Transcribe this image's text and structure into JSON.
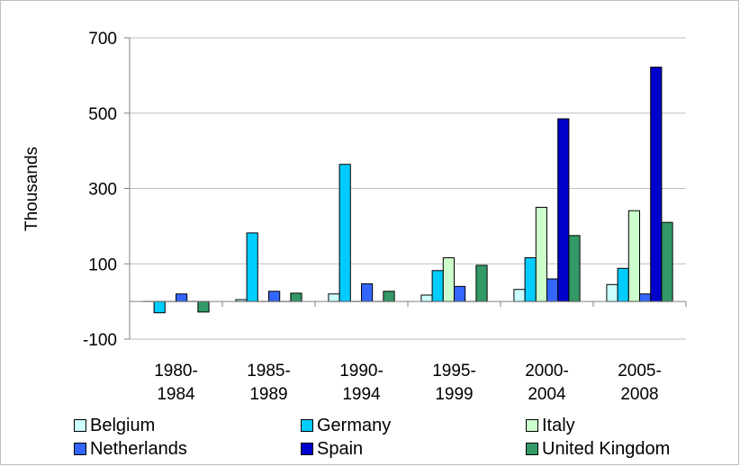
{
  "chart_data": {
    "type": "bar",
    "categories": [
      [
        "1980-",
        "1984"
      ],
      [
        "1985-",
        "1989"
      ],
      [
        "1990-",
        "1994"
      ],
      [
        "1995-",
        "1999"
      ],
      [
        "2000-",
        "2004"
      ],
      [
        "2005-",
        "2008"
      ]
    ],
    "ylabel": "Thousands",
    "ylim": [
      -100,
      700
    ],
    "yticks": [
      -100,
      100,
      300,
      500,
      700
    ],
    "grid": true,
    "legend_position": "bottom",
    "series": [
      {
        "name": "Belgium",
        "color": "#ccffff",
        "values": [
          0,
          5,
          20,
          17,
          32,
          45
        ]
      },
      {
        "name": "Germany",
        "color": "#00ccff",
        "values": [
          -30,
          182,
          364,
          82,
          116,
          88
        ]
      },
      {
        "name": "Italy",
        "color": "#ccffcc",
        "values": [
          0,
          0,
          0,
          116,
          250,
          241
        ]
      },
      {
        "name": "Netherlands",
        "color": "#3366ff",
        "values": [
          20,
          27,
          47,
          40,
          60,
          20
        ]
      },
      {
        "name": "Spain",
        "color": "#0000cc",
        "values": [
          0,
          0,
          0,
          0,
          485,
          622
        ]
      },
      {
        "name": "United Kingdom",
        "color": "#339966",
        "values": [
          -28,
          22,
          27,
          96,
          175,
          210
        ]
      }
    ]
  }
}
